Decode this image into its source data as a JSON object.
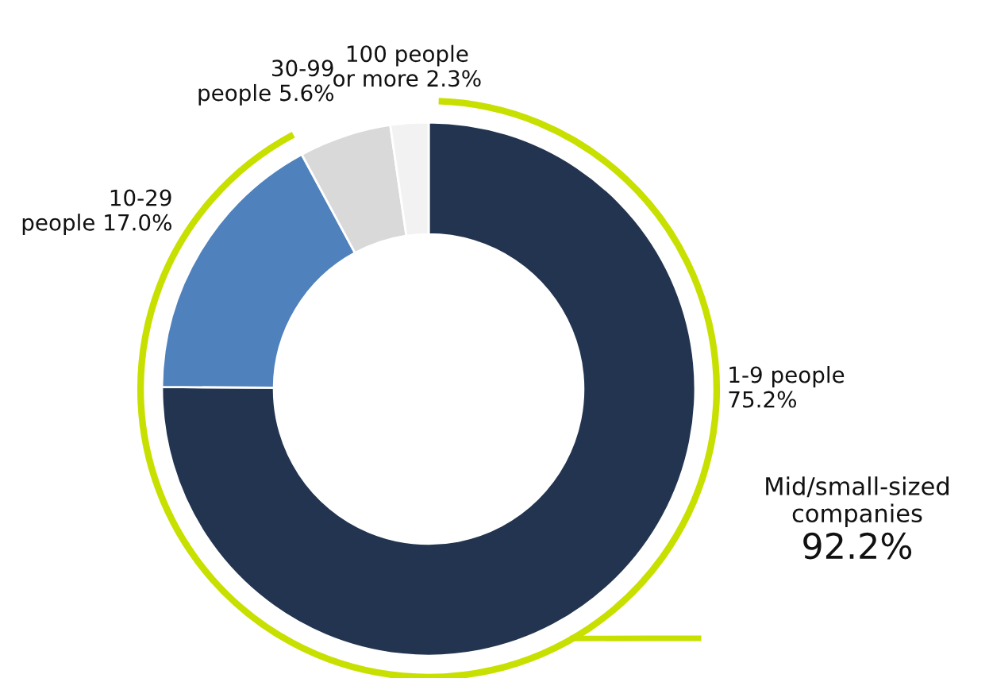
{
  "chart_data": {
    "type": "donut",
    "categories": [
      "1-9 people",
      "10-29\npeople",
      "30-99\npeople",
      "100 people\nor more"
    ],
    "values": [
      75.2,
      17.0,
      5.6,
      2.3
    ],
    "colors": [
      "#22344f",
      "#4f81bd",
      "#d9d9d9",
      "#f2f2f2"
    ],
    "value_labels": [
      "75.2%",
      "17.0%",
      "5.6%",
      "2.3%"
    ],
    "annotations": [
      "Mid/small-sized\ncompanies\n92.2%"
    ]
  }
}
